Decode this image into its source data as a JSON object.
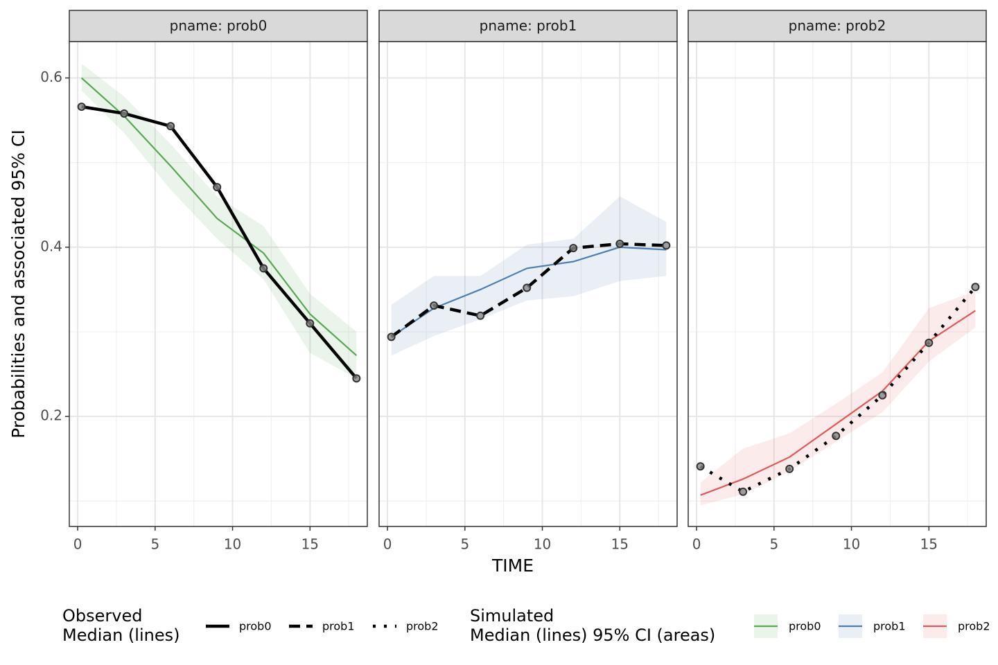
{
  "ylabel": "Probabilities and associated 95% CI",
  "xlabel": "TIME",
  "legend_titles": [
    [
      "Observed",
      "Median (lines)"
    ],
    [
      "Simulated",
      "Median (lines) 95% CI (areas)"
    ]
  ],
  "chart_data": [
    {
      "type": "line",
      "title": "pname: prob0",
      "x": [
        0.25,
        3,
        6,
        9,
        12,
        15,
        18
      ],
      "xlim": [
        -0.54,
        18.7
      ],
      "xticks": [
        0,
        5,
        10,
        15
      ],
      "minor_xticks": [
        2.5,
        7.5,
        12.5,
        17.5
      ],
      "ylim": [
        0.07,
        0.643
      ],
      "yticks": [
        0.2,
        0.4,
        0.6
      ],
      "minor_yticks": [
        0.1,
        0.3,
        0.5
      ],
      "grid": true,
      "series": [
        {
          "name": "prob0",
          "linetype": "solid",
          "values": [
            0.566,
            0.558,
            0.543,
            0.471,
            0.375,
            0.31,
            0.245
          ]
        },
        {
          "name": "prob0",
          "color": "#5aa555",
          "values": [
            0.6,
            0.555,
            0.496,
            0.434,
            0.393,
            0.321,
            0.272
          ],
          "lower": [
            0.585,
            0.535,
            0.468,
            0.41,
            0.362,
            0.275,
            0.245
          ],
          "upper": [
            0.617,
            0.578,
            0.522,
            0.46,
            0.425,
            0.345,
            0.3
          ]
        }
      ]
    },
    {
      "type": "line",
      "title": "pname: prob1",
      "x": [
        0.25,
        3,
        6,
        9,
        12,
        15,
        18
      ],
      "xlim": [
        -0.54,
        18.7
      ],
      "xticks": [
        0,
        5,
        10,
        15
      ],
      "minor_xticks": [
        2.5,
        7.5,
        12.5,
        17.5
      ],
      "ylim": [
        0.07,
        0.643
      ],
      "yticks": [
        0.2,
        0.4,
        0.6
      ],
      "minor_yticks": [
        0.1,
        0.3,
        0.5
      ],
      "grid": true,
      "series": [
        {
          "name": "prob1",
          "linetype": "dashed",
          "values": [
            0.294,
            0.331,
            0.319,
            0.352,
            0.399,
            0.404,
            0.402
          ]
        },
        {
          "name": "prob1",
          "color": "#4e7fb0",
          "values": [
            0.294,
            0.328,
            0.35,
            0.375,
            0.383,
            0.4,
            0.397
          ],
          "lower": [
            0.272,
            0.295,
            0.315,
            0.337,
            0.342,
            0.36,
            0.366
          ],
          "upper": [
            0.332,
            0.366,
            0.366,
            0.403,
            0.41,
            0.46,
            0.43
          ]
        }
      ]
    },
    {
      "type": "line",
      "title": "pname: prob2",
      "x": [
        0.25,
        3,
        6,
        9,
        12,
        15,
        18
      ],
      "xlim": [
        -0.54,
        18.7
      ],
      "xticks": [
        0,
        5,
        10,
        15
      ],
      "minor_xticks": [
        2.5,
        7.5,
        12.5,
        17.5
      ],
      "ylim": [
        0.07,
        0.643
      ],
      "yticks": [
        0.2,
        0.4,
        0.6
      ],
      "minor_yticks": [
        0.1,
        0.3,
        0.5
      ],
      "grid": true,
      "series": [
        {
          "name": "prob2",
          "linetype": "dotted",
          "values": [
            0.141,
            0.111,
            0.138,
            0.177,
            0.225,
            0.287,
            0.353
          ]
        },
        {
          "name": "prob2",
          "color": "#e05a5a",
          "values": [
            0.107,
            0.126,
            0.152,
            0.191,
            0.23,
            0.289,
            0.325
          ],
          "lower": [
            0.095,
            0.108,
            0.135,
            0.17,
            0.205,
            0.265,
            0.305
          ],
          "upper": [
            0.122,
            0.162,
            0.18,
            0.215,
            0.252,
            0.328,
            0.348
          ]
        }
      ]
    }
  ]
}
